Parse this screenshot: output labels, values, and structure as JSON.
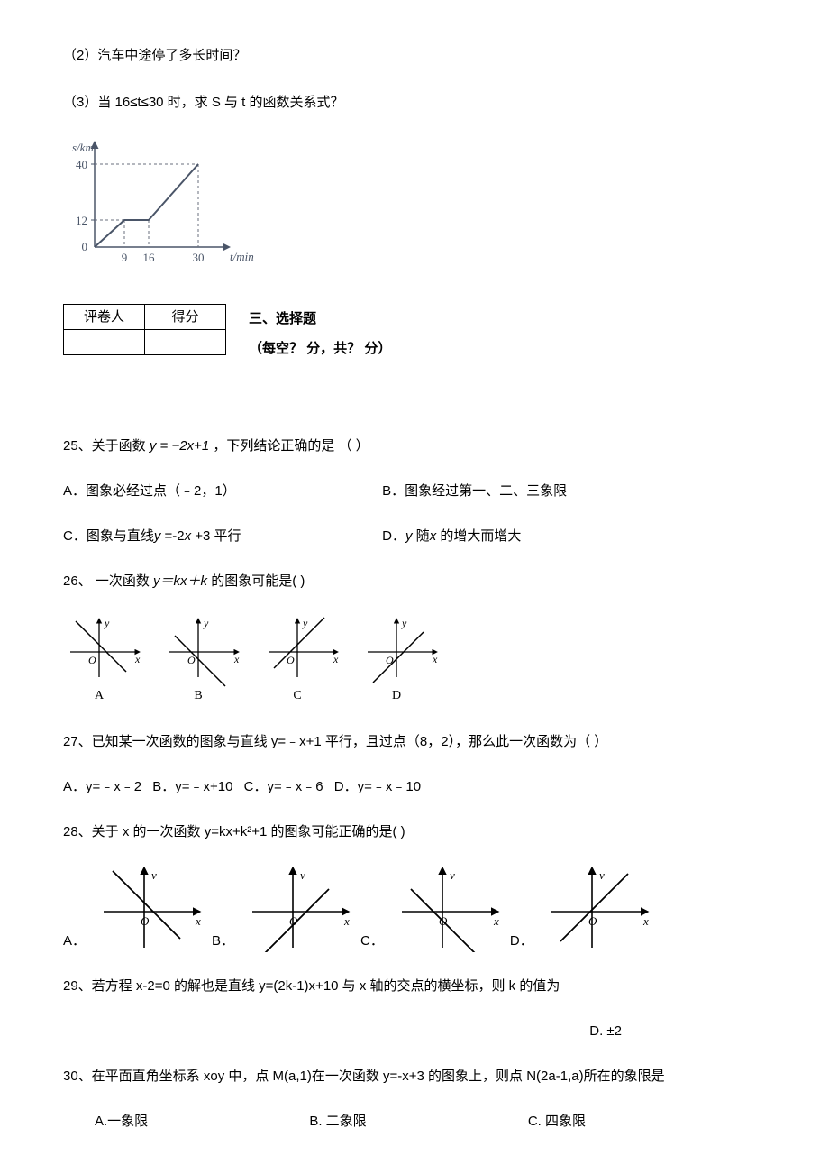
{
  "q_pre": {
    "line2": "（2）汽车中途停了多长时间？",
    "line3": "（3）当 16≤t≤30 时，求 S 与 t 的函数关系式？"
  },
  "chart1": {
    "y_axis_label": "s/km",
    "x_axis_label": "t/min",
    "y_ticks": [
      "40",
      "12",
      "0"
    ],
    "x_ticks": [
      "9",
      "16",
      "30"
    ],
    "y_tick_positions": [
      12,
      74,
      100
    ],
    "x_tick_positions": [
      32,
      62,
      116
    ],
    "axis_color": "#4a5568",
    "line_color": "#4a5568",
    "dash_color": "#6a6f7d",
    "width": 190,
    "height": 130
  },
  "score_table": {
    "header1": "评卷人",
    "header2": "得分"
  },
  "section": {
    "title": "三、选择题",
    "subtitle": "（每空？ 分，共？ 分）"
  },
  "q25": {
    "prefix": "25、关于函数",
    "formula": "y = −2x+1",
    "suffix": "，下列结论正确的是 （           ）",
    "optA": "A．图象必经过点（﹣2，1）",
    "optB": "B．图象经过第一、二、三象限",
    "optC_pre": "C．图象与直线",
    "optC_mid": "y",
    "optC_formula": " =-2",
    "optC_x": "x",
    "optC_post": " +3 平行",
    "optD_pre": "D．",
    "optD_y": "y",
    "optD_mid": " 随",
    "optD_x": "x",
    "optD_post": " 的增大而增大"
  },
  "q26": {
    "prefix": "26、  一次函数 ",
    "formula": "y＝kx＋k",
    "suffix": " 的图象可能是(         )",
    "graphs": {
      "labels": [
        "A",
        "B",
        "C",
        "D"
      ],
      "slopes": [
        -1,
        -1,
        1,
        1
      ],
      "y_intercepts": [
        8,
        -8,
        8,
        -8
      ],
      "width": 104,
      "height": 78,
      "axis_color": "#000"
    }
  },
  "q27": {
    "text": "27、已知某一次函数的图象与直线 y=﹣x+1 平行，且过点（8，2），那么此一次函数为（     ）",
    "optA": "A．y=﹣x﹣2",
    "optB": "B．y=﹣x+10",
    "optC": "C．y=﹣x﹣6",
    "optD": "D．y=﹣x﹣10"
  },
  "q28": {
    "text": "28、关于 x 的一次函数 y=kx+k²+1 的图象可能正确的是(             )",
    "graphs": {
      "labels": [
        "A．",
        "B．",
        "C．",
        "D．"
      ],
      "configs": [
        {
          "slope": -1,
          "y_int": 10
        },
        {
          "slope": 1,
          "y_int": -15
        },
        {
          "slope": -1,
          "y_int": -10
        },
        {
          "slope": 1,
          "y_int": 2
        }
      ],
      "width": 130,
      "height": 95,
      "axis_color": "#000"
    }
  },
  "q29": {
    "text": "29、若方程 x-2=0 的解也是直线 y=(2k-1)x+10 与 x 轴的交点的横坐标，则 k 的值为",
    "optD": "D. ±2"
  },
  "q30": {
    "text": "30、在平面直角坐标系 xoy 中，点 M(a,1)在一次函数 y=-x+3 的图象上，则点 N(2a-1,a)所在的象限是",
    "optA": "A.一象限",
    "optB": "B. 二象限",
    "optC": "C. 四象限"
  }
}
